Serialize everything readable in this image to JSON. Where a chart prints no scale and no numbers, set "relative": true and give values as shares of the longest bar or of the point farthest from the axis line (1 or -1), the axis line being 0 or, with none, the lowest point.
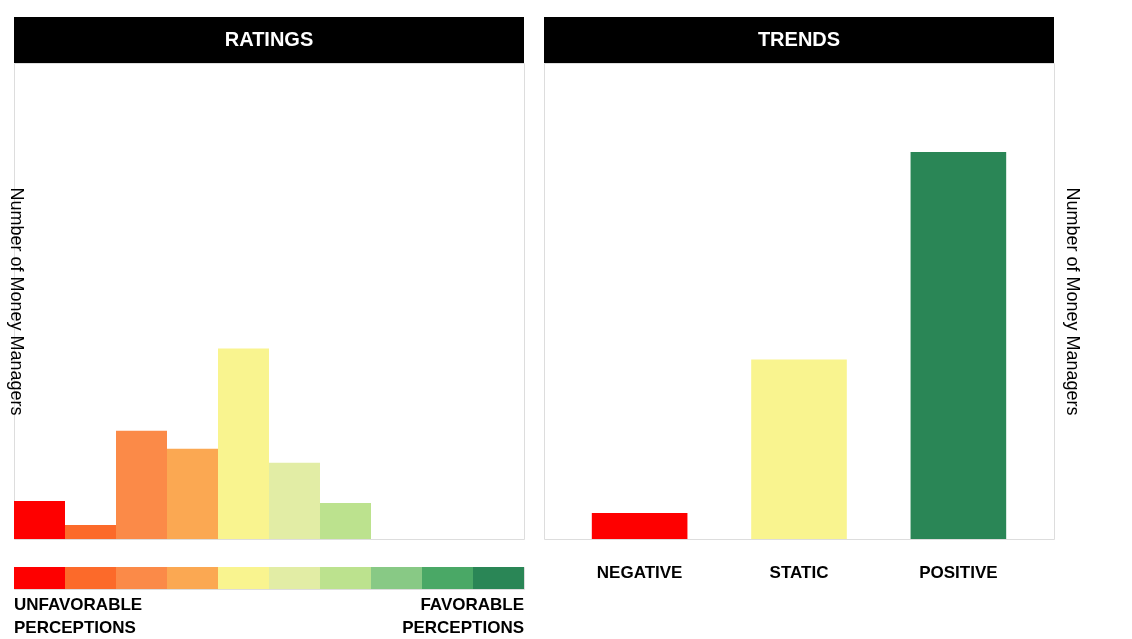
{
  "chart_data": [
    {
      "type": "bar",
      "title": "RATINGS",
      "ylabel": "Number of Money Managers",
      "relative": true,
      "categories": [
        null,
        null,
        null,
        null,
        null,
        null,
        null,
        null,
        null,
        null
      ],
      "values": [
        0.2,
        0.074,
        0.568,
        0.474,
        1,
        0.4,
        0.189,
        0,
        0,
        0
      ],
      "colors": [
        "#fe0000",
        "#fc6a2a",
        "#fb8a48",
        "#fba852",
        "#f9f48f",
        "#e2eda5",
        "#bce28e",
        "#88c985",
        "#4aa866",
        "#2a8656"
      ],
      "annotations": [
        "UNFAVORABLE PERCEPTIONS",
        "FAVORABLE PERCEPTIONS"
      ]
    },
    {
      "type": "bar",
      "title": "TRENDS",
      "y2label": "Number of Money Managers",
      "relative": true,
      "categories": [
        "NEGATIVE",
        "STATIC",
        "POSITIVE"
      ],
      "values": [
        0.067,
        0.464,
        1
      ],
      "colors": [
        "#fe0000",
        "#f9f48f",
        "#2a8656"
      ]
    }
  ]
}
